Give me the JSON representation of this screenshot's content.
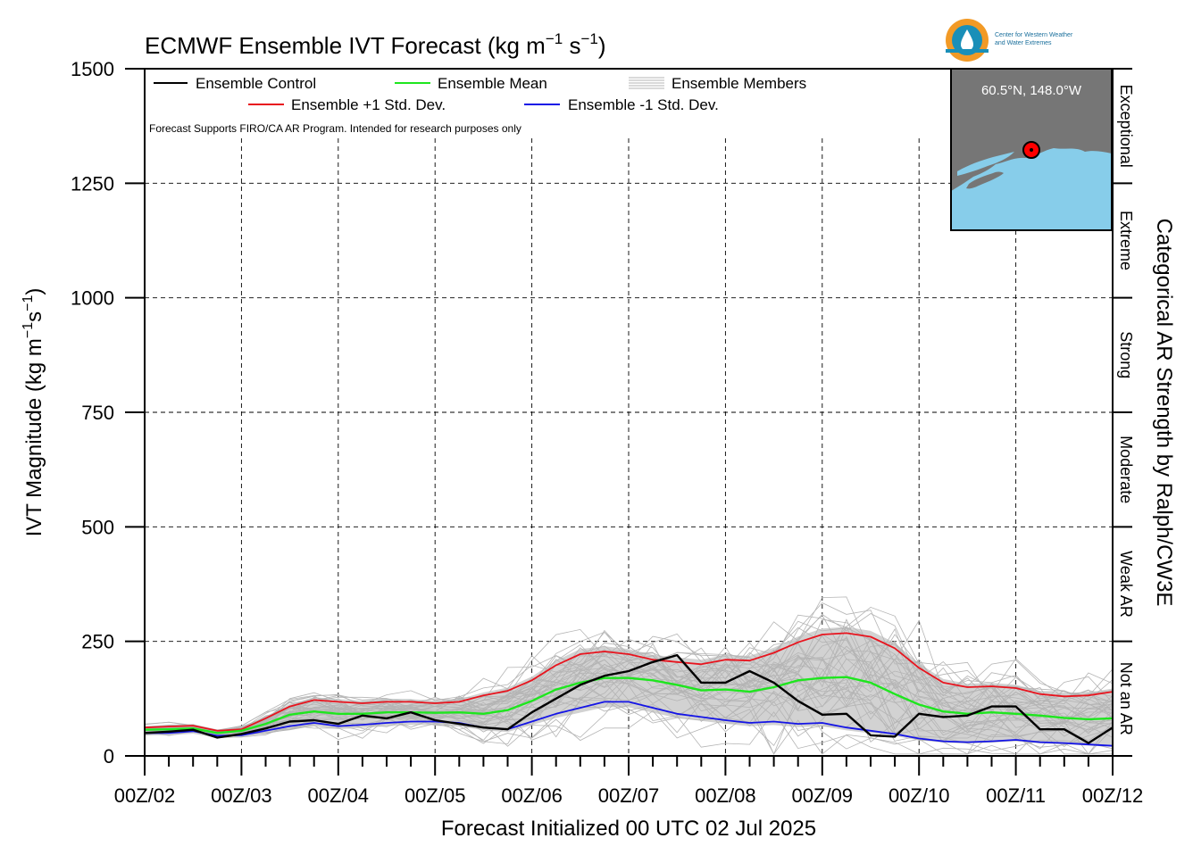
{
  "chart_data": {
    "type": "line",
    "title_prefix": "ECMWF Ensemble IVT Forecast (kg m",
    "title_exp1": "−1",
    "title_mid": " s",
    "title_exp2": "−1",
    "title_suffix": ")",
    "xlabel": "Forecast Initialized 00 UTC 02 Jul 2025",
    "ylabel_prefix": "IVT Magnitude (kg m",
    "ylabel_exp1": "−1",
    "ylabel_mid": "s",
    "ylabel_exp2": "−1",
    "ylabel_suffix": ")",
    "right_axis_label": "Categorical AR Strength by Ralph/CW3E",
    "ylim": [
      0,
      1500
    ],
    "xlim": [
      0,
      10
    ],
    "y_ticks": [
      0,
      250,
      500,
      750,
      1000,
      1250,
      1500
    ],
    "x_ticks": [
      {
        "value": 0,
        "label": "00Z/02"
      },
      {
        "value": 1,
        "label": "00Z/03"
      },
      {
        "value": 2,
        "label": "00Z/04"
      },
      {
        "value": 3,
        "label": "00Z/05"
      },
      {
        "value": 4,
        "label": "00Z/06"
      },
      {
        "value": 5,
        "label": "00Z/07"
      },
      {
        "value": 6,
        "label": "00Z/08"
      },
      {
        "value": 7,
        "label": "00Z/09"
      },
      {
        "value": 8,
        "label": "00Z/10"
      },
      {
        "value": 9,
        "label": "00Z/11"
      },
      {
        "value": 10,
        "label": "00Z/12"
      }
    ],
    "categories": [
      {
        "name": "Not an AR",
        "from": 0,
        "to": 250
      },
      {
        "name": "Weak AR",
        "from": 250,
        "to": 500
      },
      {
        "name": "Moderate",
        "from": 500,
        "to": 750
      },
      {
        "name": "Strong",
        "from": 750,
        "to": 1000
      },
      {
        "name": "Extreme",
        "from": 1000,
        "to": 1250
      },
      {
        "name": "Exceptional",
        "from": 1250,
        "to": 1500
      }
    ],
    "grid": true,
    "legend_position": "top-left",
    "legend": {
      "control": "Ensemble Control",
      "mean": "Ensemble Mean",
      "members": "Ensemble Members",
      "plus": "Ensemble +1 Std. Dev.",
      "minus": "Ensemble -1 Std. Dev."
    },
    "note": "Forecast Supports FIRO/CA AR Program. Intended for research purposes only",
    "colors": {
      "control": "#000000",
      "mean": "#1ee61e",
      "plus": "#e8141e",
      "minus": "#1414e6",
      "members": "#b4b4b4",
      "spread_fill": "#d2d2d2"
    },
    "series": [
      {
        "name": "Ensemble Control",
        "x": [
          0,
          0.25,
          0.5,
          0.75,
          1,
          1.25,
          1.5,
          1.75,
          2,
          2.25,
          2.5,
          2.75,
          3,
          3.25,
          3.5,
          3.75,
          4,
          4.25,
          4.5,
          4.75,
          5,
          5.25,
          5.5,
          5.75,
          6,
          6.25,
          6.5,
          6.75,
          7,
          7.25,
          7.5,
          7.75,
          8,
          8.25,
          8.5,
          8.75,
          9,
          9.25,
          9.5,
          9.75,
          10
        ],
        "y": [
          50,
          53,
          57,
          40,
          48,
          60,
          75,
          78,
          70,
          88,
          82,
          95,
          78,
          70,
          62,
          58,
          95,
          125,
          155,
          175,
          185,
          205,
          220,
          160,
          160,
          185,
          160,
          120,
          90,
          92,
          45,
          42,
          92,
          85,
          88,
          108,
          108,
          58,
          58,
          28,
          62
        ]
      },
      {
        "name": "Ensemble Mean",
        "x": [
          0,
          0.25,
          0.5,
          0.75,
          1,
          1.25,
          1.5,
          1.75,
          2,
          2.25,
          2.5,
          2.75,
          3,
          3.25,
          3.5,
          3.75,
          4,
          4.25,
          4.5,
          4.75,
          5,
          5.25,
          5.5,
          5.75,
          6,
          6.25,
          6.5,
          6.75,
          7,
          7.25,
          7.5,
          7.75,
          8,
          8.25,
          8.5,
          8.75,
          9,
          9.25,
          9.5,
          9.75,
          10
        ],
        "y": [
          57,
          58,
          60,
          50,
          55,
          70,
          90,
          97,
          92,
          92,
          95,
          95,
          94,
          95,
          92,
          100,
          120,
          145,
          160,
          170,
          170,
          165,
          155,
          143,
          145,
          140,
          150,
          165,
          170,
          172,
          160,
          135,
          112,
          97,
          92,
          95,
          92,
          88,
          83,
          80,
          82
        ]
      },
      {
        "name": "Ensemble +1 Std. Dev.",
        "x": [
          0,
          0.25,
          0.5,
          0.75,
          1,
          1.25,
          1.5,
          1.75,
          2,
          2.25,
          2.5,
          2.75,
          3,
          3.25,
          3.5,
          3.75,
          4,
          4.25,
          4.5,
          4.75,
          5,
          5.25,
          5.5,
          5.75,
          6,
          6.25,
          6.5,
          6.75,
          7,
          7.25,
          7.5,
          7.75,
          8,
          8.25,
          8.5,
          8.75,
          9,
          9.25,
          9.5,
          9.75,
          10
        ],
        "y": [
          62,
          64,
          66,
          55,
          58,
          82,
          108,
          122,
          118,
          115,
          118,
          118,
          115,
          118,
          132,
          142,
          165,
          198,
          222,
          228,
          222,
          210,
          205,
          200,
          210,
          208,
          225,
          248,
          265,
          268,
          260,
          235,
          192,
          160,
          150,
          152,
          148,
          135,
          130,
          132,
          140
        ]
      },
      {
        "name": "Ensemble -1 Std. Dev.",
        "x": [
          0,
          0.25,
          0.5,
          0.75,
          1,
          1.25,
          1.5,
          1.75,
          2,
          2.25,
          2.5,
          2.75,
          3,
          3.25,
          3.5,
          3.75,
          4,
          4.25,
          4.5,
          4.75,
          5,
          5.25,
          5.5,
          5.75,
          6,
          6.25,
          6.5,
          6.75,
          7,
          7.25,
          7.5,
          7.75,
          8,
          8.25,
          8.5,
          8.75,
          9,
          9.25,
          9.5,
          9.75,
          10
        ],
        "y": [
          50,
          50,
          54,
          44,
          45,
          55,
          65,
          72,
          65,
          68,
          72,
          75,
          75,
          72,
          62,
          58,
          75,
          92,
          105,
          118,
          118,
          105,
          92,
          85,
          78,
          72,
          75,
          70,
          72,
          62,
          55,
          48,
          38,
          32,
          30,
          32,
          35,
          30,
          28,
          25,
          22
        ]
      }
    ]
  },
  "inset_map": {
    "location_label": "60.5°N, 148.0°W",
    "land_color": "#767676",
    "water_color": "#87cdea",
    "marker_color": "#ff0000"
  },
  "logo": {
    "org_line1": "Center for Western Weather",
    "org_line2": "and Water Extremes"
  }
}
